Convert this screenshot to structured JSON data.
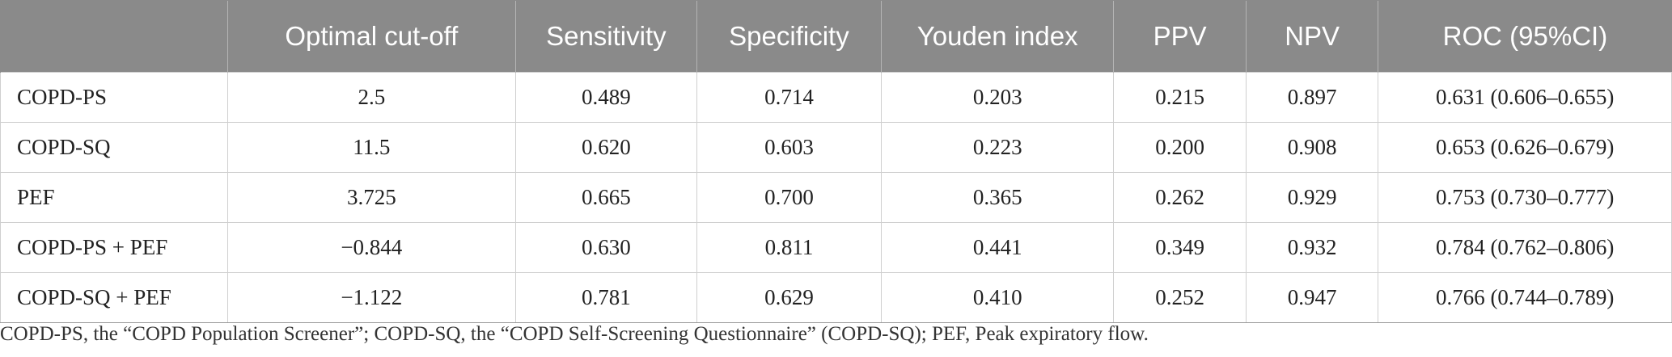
{
  "table": {
    "columns": [
      "",
      "Optimal cut-off",
      "Sensitivity",
      "Specificity",
      "Youden index",
      "PPV",
      "NPV",
      "ROC (95%CI)"
    ],
    "rows": [
      [
        "COPD-PS",
        "2.5",
        "0.489",
        "0.714",
        "0.203",
        "0.215",
        "0.897",
        "0.631 (0.606–0.655)"
      ],
      [
        "COPD-SQ",
        "11.5",
        "0.620",
        "0.603",
        "0.223",
        "0.200",
        "0.908",
        "0.653 (0.626–0.679)"
      ],
      [
        "PEF",
        "3.725",
        "0.665",
        "0.700",
        "0.365",
        "0.262",
        "0.929",
        "0.753 (0.730–0.777)"
      ],
      [
        "COPD-PS + PEF",
        "−0.844",
        "0.630",
        "0.811",
        "0.441",
        "0.349",
        "0.932",
        "0.784 (0.762–0.806)"
      ],
      [
        "COPD-SQ + PEF",
        "−1.122",
        "0.781",
        "0.629",
        "0.410",
        "0.252",
        "0.947",
        "0.766 (0.744–0.789)"
      ]
    ]
  },
  "footnote": "COPD-PS, the “COPD Population Screener”; COPD-SQ, the “COPD Self-Screening Questionnaire” (COPD-SQ); PEF, Peak expiratory flow.",
  "colors": {
    "header_bg": "#8a8a8a",
    "header_text": "#ffffff",
    "grid": "#cfcfcf"
  }
}
